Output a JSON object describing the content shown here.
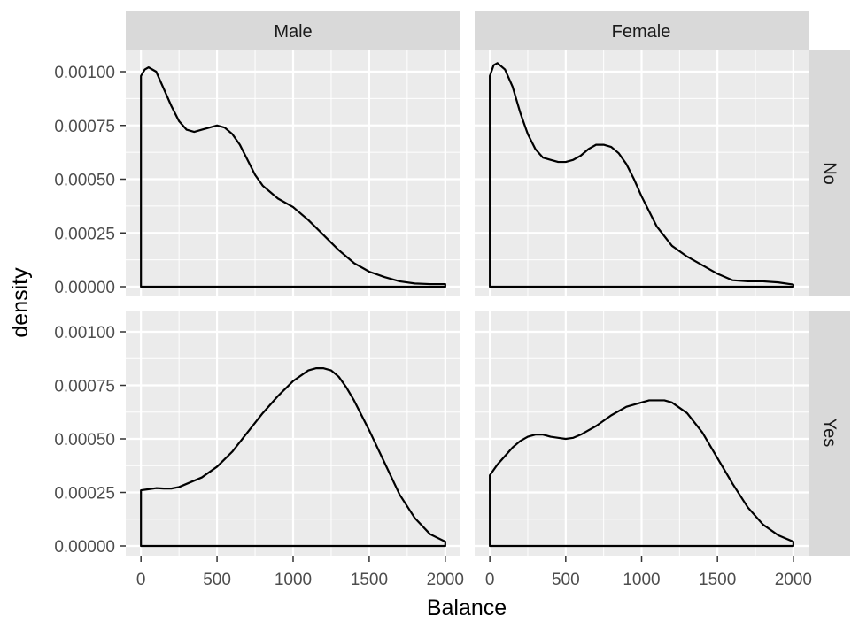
{
  "chart_data": {
    "type": "area",
    "facet_layout": "grid",
    "xlabel": "Balance",
    "ylabel": "density",
    "xlim": [
      0,
      2000
    ],
    "ylim": [
      0,
      0.0011
    ],
    "x_ticks": [
      0,
      500,
      1000,
      1500,
      2000
    ],
    "x_tick_labels": [
      "0",
      "500",
      "1000",
      "1500",
      "2000"
    ],
    "y_ticks": [
      0,
      0.00025,
      0.0005,
      0.00075,
      0.001
    ],
    "y_tick_labels": [
      "0.00000",
      "0.00025",
      "0.00050",
      "0.00075",
      "0.00100"
    ],
    "column_facets": [
      "Male",
      "Female"
    ],
    "row_facets": [
      "No",
      "Yes"
    ],
    "grid": true,
    "colors": {
      "panel_bg": "#ebebeb",
      "grid": "#ffffff",
      "strip_bg": "#d9d9d9",
      "line": "#000000"
    },
    "panels": [
      {
        "column": "Male",
        "row": "No",
        "x": [
          0,
          25,
          50,
          100,
          150,
          200,
          250,
          300,
          350,
          400,
          450,
          500,
          550,
          600,
          650,
          700,
          750,
          800,
          900,
          1000,
          1100,
          1200,
          1300,
          1400,
          1500,
          1600,
          1700,
          1800,
          1900,
          2000
        ],
        "y": [
          0.00098,
          0.00101,
          0.00102,
          0.001,
          0.00092,
          0.00084,
          0.00077,
          0.00073,
          0.00072,
          0.00073,
          0.00074,
          0.00075,
          0.00074,
          0.00071,
          0.00066,
          0.00059,
          0.00052,
          0.00047,
          0.00041,
          0.00037,
          0.00031,
          0.00024,
          0.00017,
          0.00011,
          7e-05,
          4.5e-05,
          2.5e-05,
          1.5e-05,
          1.2e-05,
          1.2e-05
        ]
      },
      {
        "column": "Female",
        "row": "No",
        "x": [
          0,
          25,
          50,
          100,
          150,
          200,
          250,
          300,
          350,
          400,
          450,
          500,
          550,
          600,
          650,
          700,
          750,
          800,
          850,
          900,
          950,
          1000,
          1100,
          1200,
          1300,
          1400,
          1500,
          1600,
          1700,
          1800,
          1900,
          2000
        ],
        "y": [
          0.00098,
          0.00103,
          0.00104,
          0.00101,
          0.00093,
          0.00081,
          0.00071,
          0.00064,
          0.0006,
          0.00059,
          0.00058,
          0.00058,
          0.00059,
          0.00061,
          0.00064,
          0.00066,
          0.00066,
          0.00065,
          0.00062,
          0.00057,
          0.0005,
          0.00042,
          0.00028,
          0.00019,
          0.00014,
          0.0001,
          6e-05,
          3e-05,
          2.5e-05,
          2.5e-05,
          2e-05,
          1e-05
        ]
      },
      {
        "column": "Male",
        "row": "Yes",
        "x": [
          0,
          50,
          100,
          150,
          200,
          250,
          300,
          400,
          500,
          600,
          700,
          800,
          900,
          1000,
          1100,
          1150,
          1200,
          1250,
          1300,
          1350,
          1400,
          1500,
          1600,
          1700,
          1800,
          1900,
          2000
        ],
        "y": [
          0.00026,
          0.000265,
          0.00027,
          0.000268,
          0.000268,
          0.000275,
          0.00029,
          0.00032,
          0.00037,
          0.00044,
          0.00053,
          0.00062,
          0.0007,
          0.00077,
          0.00082,
          0.00083,
          0.00083,
          0.00082,
          0.00079,
          0.00074,
          0.00068,
          0.00054,
          0.00039,
          0.00024,
          0.00013,
          5.5e-05,
          2e-05
        ]
      },
      {
        "column": "Female",
        "row": "Yes",
        "x": [
          0,
          50,
          100,
          150,
          200,
          250,
          300,
          350,
          400,
          450,
          500,
          550,
          600,
          650,
          700,
          800,
          900,
          1000,
          1050,
          1100,
          1150,
          1200,
          1300,
          1400,
          1500,
          1600,
          1700,
          1800,
          1900,
          2000
        ],
        "y": [
          0.00033,
          0.00038,
          0.00042,
          0.00046,
          0.00049,
          0.00051,
          0.00052,
          0.00052,
          0.00051,
          0.000505,
          0.0005,
          0.000505,
          0.00052,
          0.00054,
          0.00056,
          0.00061,
          0.00065,
          0.00067,
          0.00068,
          0.00068,
          0.00068,
          0.00067,
          0.00062,
          0.00053,
          0.00041,
          0.00029,
          0.00018,
          0.0001,
          5e-05,
          2e-05
        ]
      }
    ]
  }
}
